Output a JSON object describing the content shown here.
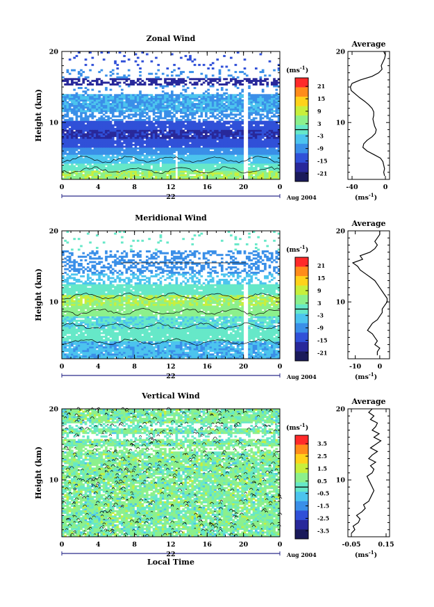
{
  "chart_data": [
    {
      "type": "heatmap",
      "title": "Zonal Wind",
      "ylabel": "Height (km)",
      "ylim": [
        2,
        20
      ],
      "y_ticks": [
        "10",
        "20"
      ],
      "x_ticks": [
        "0",
        "4",
        "8",
        "12",
        "16",
        "20",
        "0"
      ],
      "xlim": [
        0,
        24
      ],
      "date_day": "22",
      "date_month": "Aug 2004",
      "colorbar": {
        "unit": "(ms",
        "unit_exp": "-1",
        "unit_close": ")",
        "ticks": [
          "21",
          "15",
          "9",
          "3",
          "-3",
          "-9",
          "-15",
          "-21"
        ]
      },
      "profile": {
        "title": "Average",
        "x_ticks": [
          "-40",
          "0"
        ],
        "xlim": [
          -45,
          5
        ],
        "y_ticks": [
          "10",
          "20"
        ],
        "xunit": "(ms",
        "xunit_exp": "-1",
        "xunit_close": ")",
        "heights": [
          2.5,
          3,
          3.5,
          4,
          4.5,
          5,
          5.5,
          6,
          6.5,
          7,
          7.5,
          8,
          8.5,
          9,
          9.5,
          10,
          10.5,
          11,
          11.5,
          12,
          12.5,
          13,
          13.5,
          14,
          14.5,
          15,
          15.5,
          16,
          16.5,
          17,
          17.5,
          18,
          18.5,
          19,
          19.5,
          20
        ],
        "values": [
          -1,
          -2,
          -1,
          -2,
          -3,
          -6,
          -14,
          -22,
          -27,
          -26,
          -22,
          -16,
          -12,
          -11,
          -13,
          -14,
          -15,
          -14,
          -14,
          -16,
          -20,
          -25,
          -31,
          -36,
          -41,
          -42,
          -40,
          -30,
          -16,
          -8,
          -4,
          -5,
          -3,
          -1,
          0,
          -2
        ]
      }
    },
    {
      "type": "heatmap",
      "title": "Meridional Wind",
      "ylabel": "Height (km)",
      "ylim": [
        2,
        20
      ],
      "y_ticks": [
        "10",
        "20"
      ],
      "x_ticks": [
        "0",
        "4",
        "8",
        "12",
        "16",
        "20",
        "0"
      ],
      "xlim": [
        0,
        24
      ],
      "date_day": "22",
      "date_month": "Aug 2004",
      "colorbar": {
        "unit": "(ms",
        "unit_exp": "-1",
        "unit_close": ")",
        "ticks": [
          "21",
          "15",
          "9",
          "3",
          "-3",
          "-9",
          "-15",
          "-21"
        ]
      },
      "profile": {
        "title": "Average",
        "x_ticks": [
          "-10",
          "0"
        ],
        "xlim": [
          -13,
          4
        ],
        "y_ticks": [
          "10",
          "20"
        ],
        "xunit": "(ms",
        "xunit_exp": "-1",
        "xunit_close": ")",
        "heights": [
          2.5,
          3,
          3.5,
          4,
          4.5,
          5,
          5.5,
          6,
          6.5,
          7,
          7.5,
          8,
          8.5,
          9,
          9.5,
          10,
          10.5,
          11,
          11.5,
          12,
          12.5,
          13,
          13.5,
          14,
          14.5,
          15,
          15.5,
          16,
          16.5,
          17,
          17.5,
          18,
          18.5,
          19,
          19.5,
          20
        ],
        "values": [
          -1,
          -1,
          0,
          -2,
          -1,
          -2,
          -3,
          -5,
          -4,
          -3,
          -1,
          0,
          1,
          1,
          2,
          3,
          3,
          2,
          1,
          0,
          -1,
          -2,
          -4,
          -6,
          -8,
          -9,
          -11,
          -7,
          -8,
          -4,
          -2,
          -1,
          -2,
          -1,
          0,
          0
        ]
      }
    },
    {
      "type": "heatmap",
      "title": "Vertical Wind",
      "ylabel": "Height (km)",
      "xlabel": "Local Time",
      "ylim": [
        2,
        20
      ],
      "y_ticks": [
        "10",
        "20"
      ],
      "x_ticks": [
        "0",
        "4",
        "8",
        "12",
        "16",
        "20",
        "0"
      ],
      "xlim": [
        0,
        24
      ],
      "date_day": "22",
      "date_month": "Aug 2004",
      "colorbar": {
        "unit": "(ms",
        "unit_exp": "-1",
        "unit_close": ")",
        "ticks": [
          "3.5",
          "2.5",
          "1.5",
          "0.5",
          "-0.5",
          "-1.5",
          "-2.5",
          "-3.5"
        ]
      },
      "profile": {
        "title": "Average",
        "x_ticks": [
          "-0.05",
          "0.15"
        ],
        "xlim": [
          -0.07,
          0.17
        ],
        "y_ticks": [
          "10",
          "20"
        ],
        "xunit": "(ms",
        "xunit_exp": "-1",
        "xunit_close": ")",
        "heights": [
          2.5,
          3,
          3.5,
          4,
          4.5,
          5,
          5.5,
          6,
          6.5,
          7,
          7.5,
          8,
          8.5,
          9,
          9.5,
          10,
          10.5,
          11,
          11.5,
          12,
          12.5,
          13,
          13.5,
          14,
          14.5,
          15,
          15.5,
          16,
          16.5,
          17,
          17.5,
          18,
          18.5,
          19,
          19.5,
          20
        ],
        "values": [
          -0.05,
          -0.03,
          -0.04,
          -0.01,
          0.0,
          -0.02,
          0.01,
          0.03,
          0.02,
          0.05,
          0.06,
          0.07,
          0.08,
          0.07,
          0.06,
          0.05,
          0.04,
          0.07,
          0.08,
          0.06,
          0.09,
          0.05,
          0.07,
          0.1,
          0.06,
          0.09,
          0.12,
          0.08,
          0.11,
          0.07,
          0.09,
          0.1,
          0.06,
          0.08,
          0.05,
          0.07
        ]
      }
    }
  ]
}
